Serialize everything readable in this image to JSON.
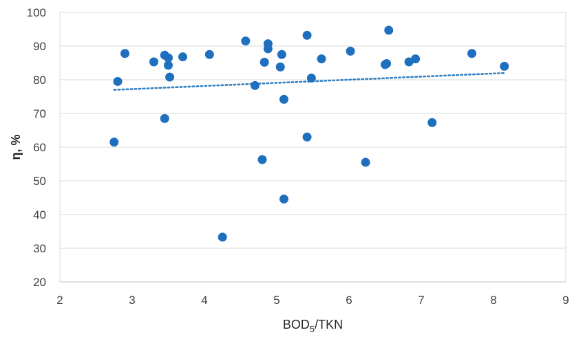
{
  "chart_data": {
    "type": "scatter",
    "xlabel_main": "BOD",
    "xlabel_sub": "5",
    "xlabel_tail": "/TKN",
    "ylabel": "η, %",
    "xlim": [
      2,
      9
    ],
    "ylim": [
      20,
      100
    ],
    "x_ticks": [
      "2",
      "3",
      "4",
      "5",
      "6",
      "7",
      "8",
      "9"
    ],
    "y_ticks": [
      "20",
      "30",
      "40",
      "50",
      "60",
      "70",
      "80",
      "90",
      "100"
    ],
    "grid": "horizontal",
    "point_color": "#1f6fbf",
    "trend_color": "#2e7fc4",
    "trendline": {
      "type": "linear",
      "x": [
        2.75,
        8.15
      ],
      "y": [
        77.0,
        82.0
      ]
    },
    "points": [
      [
        2.75,
        61.5
      ],
      [
        2.8,
        79.5
      ],
      [
        2.9,
        87.8
      ],
      [
        3.3,
        85.3
      ],
      [
        3.45,
        87.3
      ],
      [
        3.45,
        68.5
      ],
      [
        3.5,
        86.5
      ],
      [
        3.5,
        84.3
      ],
      [
        3.52,
        80.8
      ],
      [
        3.7,
        86.8
      ],
      [
        4.07,
        87.5
      ],
      [
        4.25,
        33.3
      ],
      [
        4.57,
        91.5
      ],
      [
        4.7,
        78.3
      ],
      [
        4.8,
        56.3
      ],
      [
        4.83,
        85.2
      ],
      [
        4.88,
        90.7
      ],
      [
        4.88,
        89.2
      ],
      [
        5.05,
        83.8
      ],
      [
        5.07,
        87.5
      ],
      [
        5.1,
        74.2
      ],
      [
        5.1,
        44.6
      ],
      [
        5.42,
        93.2
      ],
      [
        5.42,
        63.0
      ],
      [
        5.48,
        80.5
      ],
      [
        5.62,
        86.2
      ],
      [
        6.02,
        88.5
      ],
      [
        6.23,
        55.5
      ],
      [
        6.5,
        84.5
      ],
      [
        6.52,
        84.8
      ],
      [
        6.55,
        94.7
      ],
      [
        6.83,
        85.3
      ],
      [
        6.92,
        86.2
      ],
      [
        7.15,
        67.3
      ],
      [
        7.7,
        87.8
      ],
      [
        8.15,
        84.0
      ]
    ]
  }
}
